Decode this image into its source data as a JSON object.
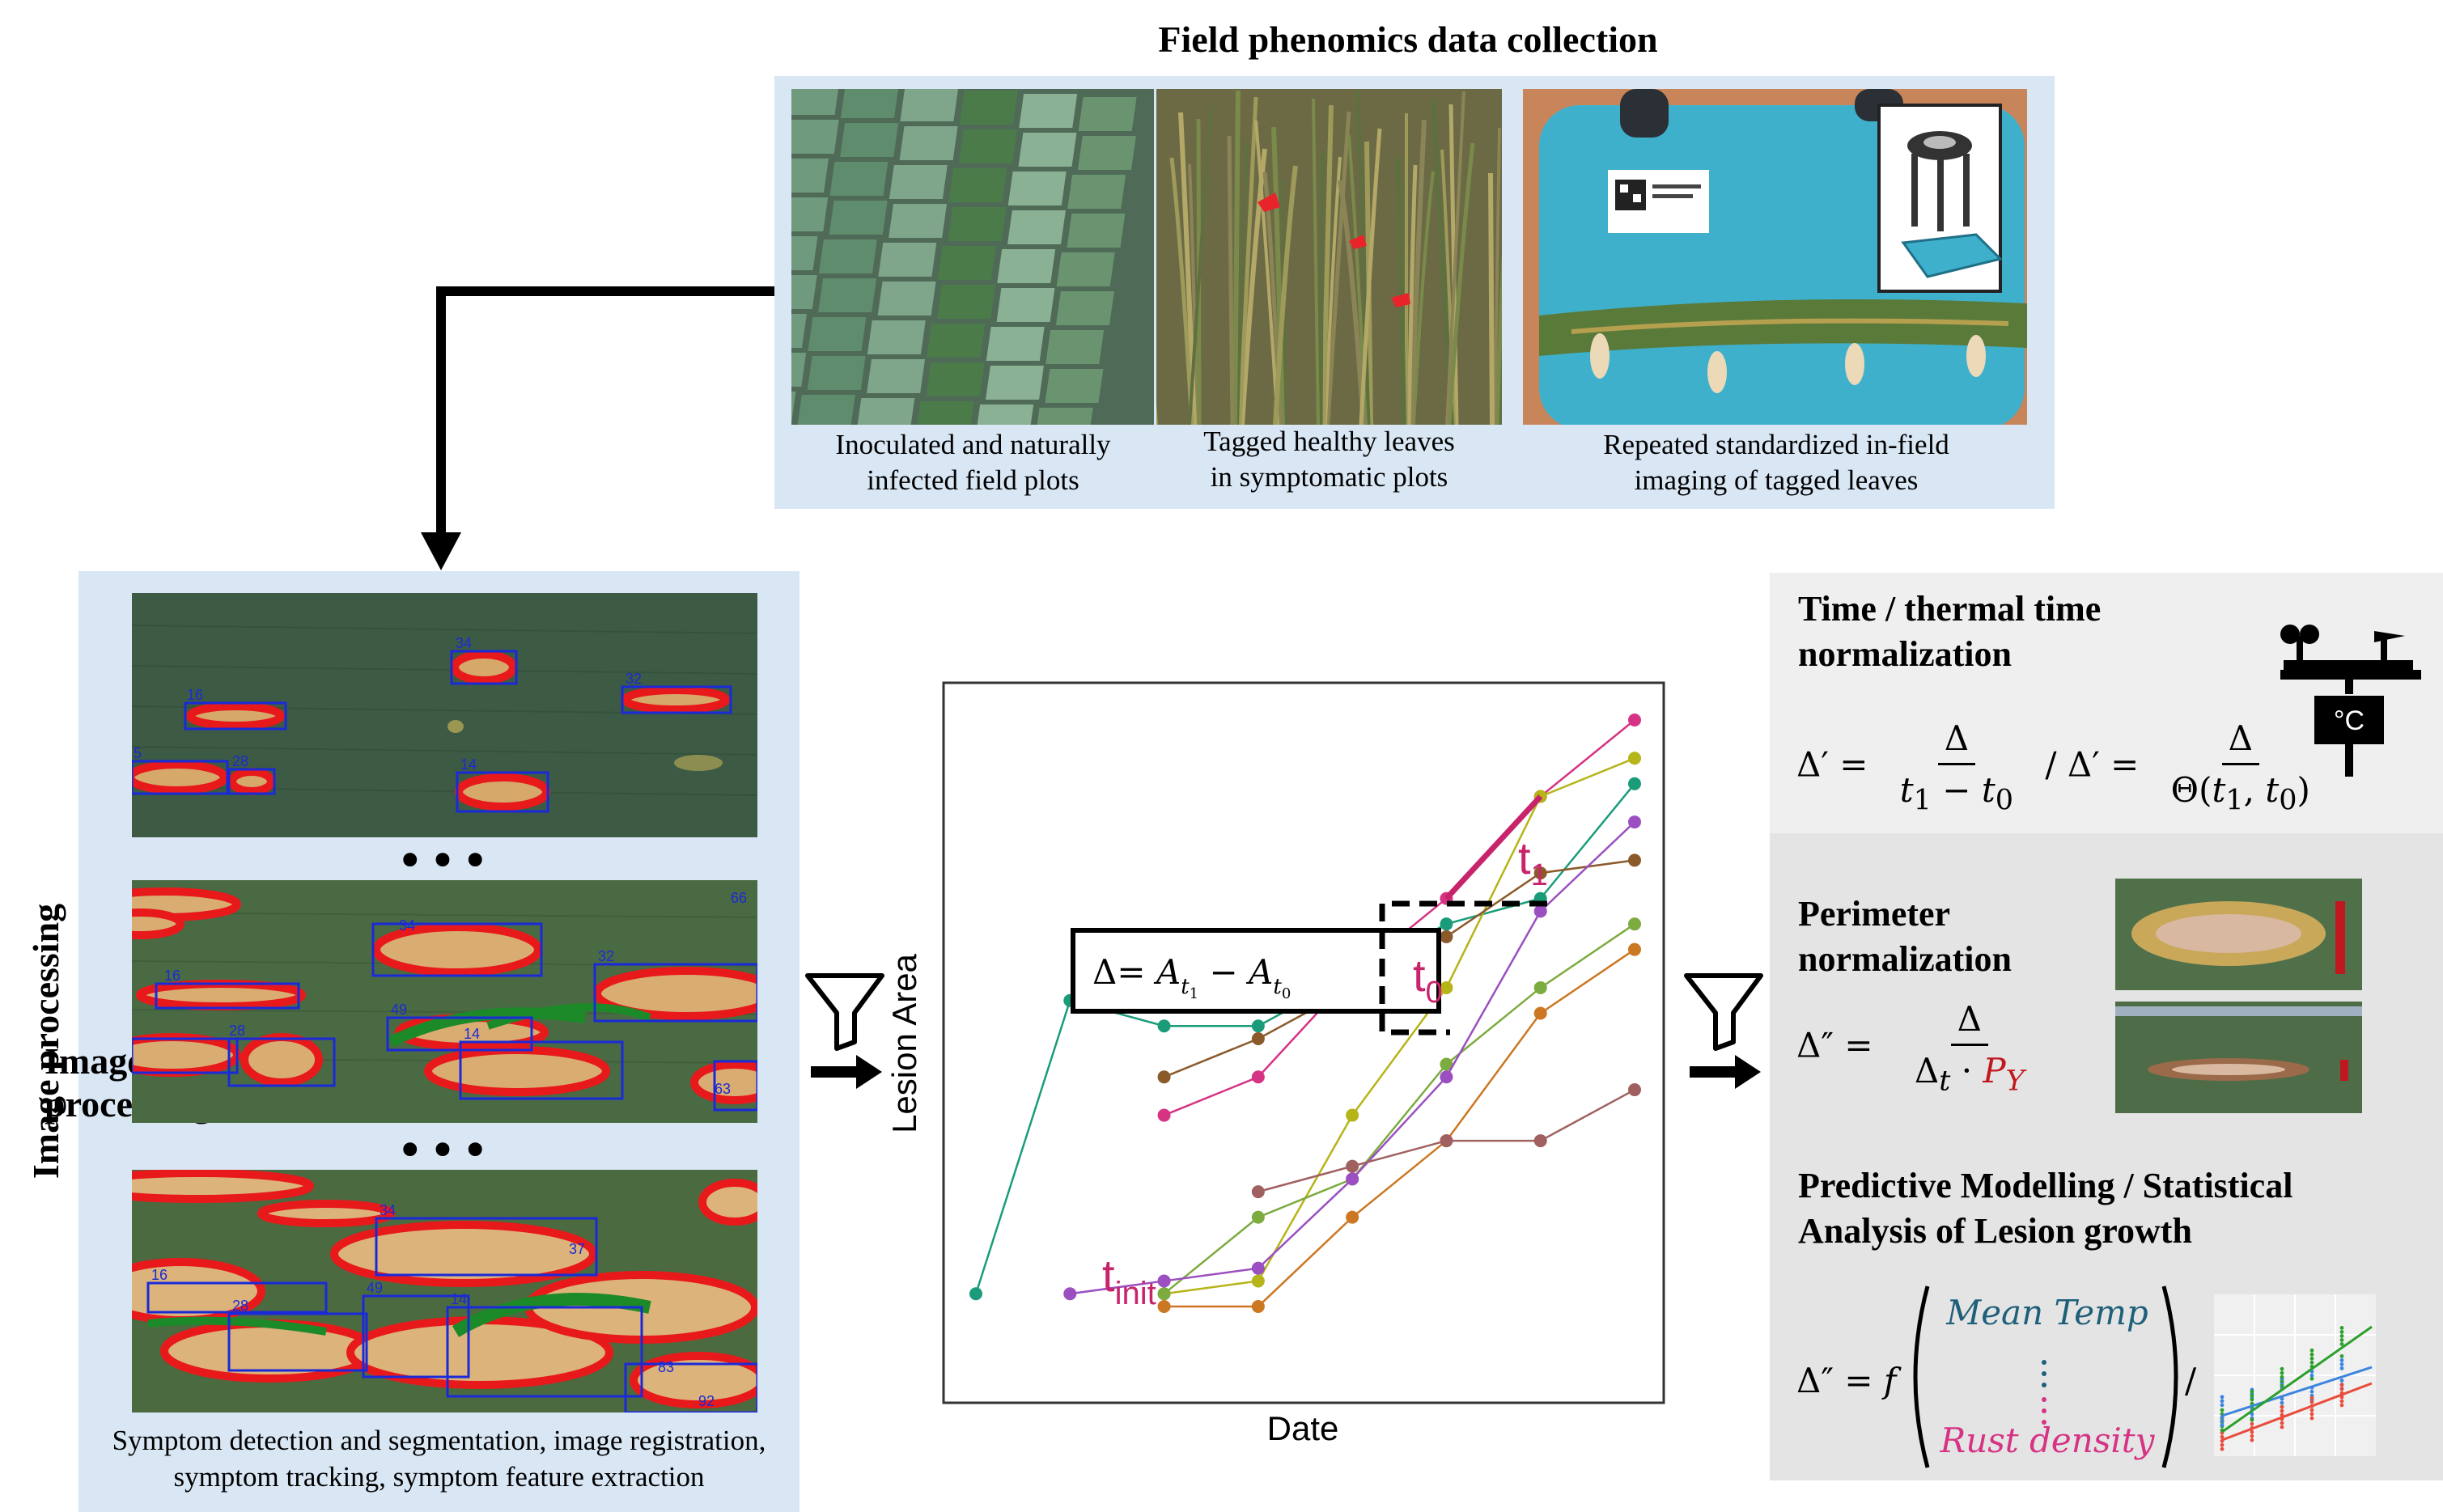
{
  "top": {
    "title": "Field phenomics data collection",
    "captions": [
      "Inoculated and naturally\ninfected field plots",
      "Tagged healthy leaves\nin symptomatic plots",
      "Repeated standardized in-field\nimaging of tagged leaves"
    ]
  },
  "left": {
    "side_label": "Image processing",
    "caption": "Symptom detection and segmentation, image registration,\nsymptom tracking, symptom feature extraction",
    "ellipsis": "•••",
    "lesion_ids_1": [
      "34",
      "16",
      "32",
      "5",
      "28",
      "14"
    ],
    "lesion_ids_2": [
      "34",
      "16",
      "32",
      "66",
      "49",
      "28",
      "14",
      "63"
    ],
    "lesion_ids_3": [
      "34",
      "16",
      "49",
      "28",
      "14",
      "37",
      "83",
      "92"
    ]
  },
  "chart_data": {
    "type": "line",
    "xlabel": "Date",
    "ylabel": "Lesion Area",
    "annotations": {
      "delta_formula": "Δ= A_t1 − A_t0",
      "t1": "t1",
      "t0": "t0",
      "tinit": "tinit"
    },
    "series_colors": [
      "#1a9c7a",
      "#d63384",
      "#b5b418",
      "#8b5a2b",
      "#7cab3f",
      "#cc7722",
      "#9b4fc0",
      "#a06060"
    ],
    "series": [
      {
        "values": [
          [
            0,
            10
          ],
          [
            1,
            56
          ],
          [
            2,
            52
          ],
          [
            3,
            52
          ],
          [
            4,
            60
          ],
          [
            5,
            68
          ],
          [
            6,
            72
          ],
          [
            7,
            90
          ]
        ]
      },
      {
        "values": [
          [
            2,
            38
          ],
          [
            3,
            44
          ],
          [
            4,
            60
          ],
          [
            5,
            72
          ],
          [
            6,
            88
          ],
          [
            7,
            100
          ]
        ]
      },
      {
        "values": [
          [
            2,
            10
          ],
          [
            3,
            12
          ],
          [
            4,
            38
          ],
          [
            5,
            58
          ],
          [
            6,
            88
          ],
          [
            7,
            94
          ]
        ]
      },
      {
        "values": [
          [
            2,
            44
          ],
          [
            3,
            50
          ],
          [
            4,
            58
          ],
          [
            5,
            66
          ],
          [
            6,
            76
          ],
          [
            7,
            78
          ]
        ]
      },
      {
        "values": [
          [
            2,
            10
          ],
          [
            3,
            22
          ],
          [
            4,
            28
          ],
          [
            5,
            46
          ],
          [
            6,
            58
          ],
          [
            7,
            68
          ]
        ]
      },
      {
        "values": [
          [
            2,
            8
          ],
          [
            3,
            8
          ],
          [
            4,
            22
          ],
          [
            5,
            34
          ],
          [
            6,
            54
          ],
          [
            7,
            64
          ]
        ]
      },
      {
        "values": [
          [
            1,
            10
          ],
          [
            2,
            12
          ],
          [
            3,
            14
          ],
          [
            4,
            28
          ],
          [
            5,
            44
          ],
          [
            6,
            70
          ],
          [
            7,
            84
          ]
        ]
      },
      {
        "values": [
          [
            3,
            26
          ],
          [
            4,
            30
          ],
          [
            5,
            34
          ],
          [
            6,
            34
          ],
          [
            7,
            42
          ]
        ]
      }
    ]
  },
  "right": {
    "time_title": "Time / thermal time\nnormalization",
    "perimeter_title": "Perimeter\nnormalization",
    "predictive_title": "Predictive Modelling / Statistical\nAnalysis of Lesion growth",
    "thermometer_label": "°C",
    "eq_mean_temp": "Mean Temp",
    "eq_rust_density": "Rust density"
  },
  "colors": {
    "panel_blue": "#d9e6f4",
    "panel_grey": "#efefef",
    "lesion_red": "#e8191b",
    "lesion_green": "#1d8a2a",
    "magenta": "#c8246c",
    "teal_text": "#1f5f7a"
  }
}
